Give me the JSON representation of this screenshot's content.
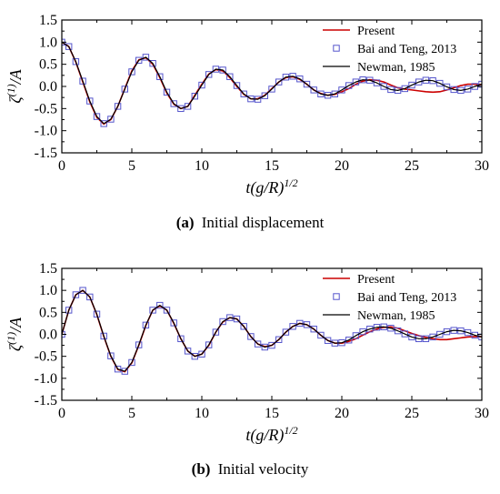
{
  "figure": {
    "captions": [
      {
        "label": "(a)",
        "text": "Initial displacement"
      },
      {
        "label": "(b)",
        "text": "Initial velocity"
      }
    ]
  },
  "chart_data": [
    {
      "type": "line",
      "xlabel": "t(g/R)^{1/2}",
      "ylabel": "ζ^{(1)}/A",
      "xlim": [
        0,
        30
      ],
      "ylim": [
        -1.5,
        1.5
      ],
      "xticks": [
        0,
        5,
        10,
        15,
        20,
        25,
        30
      ],
      "yticks": [
        -1.5,
        -1.0,
        -0.5,
        0.0,
        0.5,
        1.0,
        1.5
      ],
      "legend_position": "top-right",
      "series": [
        {
          "name": "Present",
          "style": "line",
          "color": "#cc0000",
          "x": [
            0,
            0.5,
            1,
            1.5,
            2,
            2.5,
            3,
            3.5,
            4,
            4.5,
            5,
            5.5,
            6,
            6.5,
            7,
            7.5,
            8,
            8.5,
            9,
            9.5,
            10,
            10.5,
            11,
            11.5,
            12,
            12.5,
            13,
            13.5,
            14,
            14.5,
            15,
            15.5,
            16,
            16.5,
            17,
            17.5,
            18,
            18.5,
            19,
            19.5,
            20,
            20.5,
            21,
            21.5,
            22,
            22.5,
            23,
            23.5,
            24,
            24.5,
            25,
            25.5,
            26,
            26.5,
            27,
            27.5,
            28,
            28.5,
            29,
            29.5,
            30
          ],
          "y": [
            1.0,
            0.9,
            0.55,
            0.1,
            -0.35,
            -0.7,
            -0.85,
            -0.75,
            -0.45,
            -0.05,
            0.35,
            0.6,
            0.65,
            0.5,
            0.2,
            -0.15,
            -0.4,
            -0.5,
            -0.45,
            -0.2,
            0.05,
            0.28,
            0.38,
            0.35,
            0.2,
            0.0,
            -0.18,
            -0.28,
            -0.28,
            -0.2,
            -0.05,
            0.1,
            0.2,
            0.22,
            0.16,
            0.05,
            -0.08,
            -0.16,
            -0.2,
            -0.18,
            -0.12,
            -0.05,
            0.05,
            0.12,
            0.15,
            0.14,
            0.1,
            0.03,
            -0.03,
            -0.06,
            -0.08,
            -0.1,
            -0.12,
            -0.13,
            -0.12,
            -0.08,
            -0.03,
            0.02,
            0.05,
            0.05,
            0.04
          ]
        },
        {
          "name": "Bai and Teng, 2013",
          "style": "marker",
          "color": "#5555cc",
          "x": [
            0,
            0.5,
            1,
            1.5,
            2,
            2.5,
            3,
            3.5,
            4,
            4.5,
            5,
            5.5,
            6,
            6.5,
            7,
            7.5,
            8,
            8.5,
            9,
            9.5,
            10,
            10.5,
            11,
            11.5,
            12,
            12.5,
            13,
            13.5,
            14,
            14.5,
            15,
            15.5,
            16,
            16.5,
            17,
            17.5,
            18,
            18.5,
            19,
            19.5,
            20,
            20.5,
            21,
            21.5,
            22,
            22.5,
            23,
            23.5,
            24,
            24.5,
            25,
            25.5,
            26,
            26.5,
            27,
            27.5,
            28,
            28.5,
            29,
            29.5,
            30
          ],
          "y": [
            1.0,
            0.9,
            0.56,
            0.12,
            -0.33,
            -0.68,
            -0.84,
            -0.74,
            -0.45,
            -0.06,
            0.33,
            0.59,
            0.66,
            0.52,
            0.22,
            -0.13,
            -0.39,
            -0.5,
            -0.45,
            -0.22,
            0.03,
            0.27,
            0.39,
            0.37,
            0.22,
            0.02,
            -0.17,
            -0.28,
            -0.29,
            -0.21,
            -0.06,
            0.1,
            0.21,
            0.23,
            0.17,
            0.05,
            -0.08,
            -0.17,
            -0.2,
            -0.17,
            -0.08,
            0.02,
            0.1,
            0.15,
            0.14,
            0.08,
            0.0,
            -0.07,
            -0.09,
            -0.05,
            0.03,
            0.1,
            0.14,
            0.13,
            0.07,
            -0.01,
            -0.07,
            -0.09,
            -0.06,
            0.0,
            0.05
          ]
        },
        {
          "name": "Newman, 1985",
          "style": "line",
          "color": "#000000",
          "x": [
            0,
            0.5,
            1,
            1.5,
            2,
            2.5,
            3,
            3.5,
            4,
            4.5,
            5,
            5.5,
            6,
            6.5,
            7,
            7.5,
            8,
            8.5,
            9,
            9.5,
            10,
            10.5,
            11,
            11.5,
            12,
            12.5,
            13,
            13.5,
            14,
            14.5,
            15,
            15.5,
            16,
            16.5,
            17,
            17.5,
            18,
            18.5,
            19,
            19.5,
            20,
            20.5,
            21,
            21.5,
            22,
            22.5,
            23,
            23.5,
            24,
            24.5,
            25,
            25.5,
            26,
            26.5,
            27,
            27.5,
            28,
            28.5,
            29,
            29.5,
            30
          ],
          "y": [
            1.0,
            0.9,
            0.56,
            0.12,
            -0.33,
            -0.68,
            -0.84,
            -0.74,
            -0.45,
            -0.06,
            0.33,
            0.59,
            0.66,
            0.52,
            0.22,
            -0.13,
            -0.39,
            -0.5,
            -0.45,
            -0.22,
            0.03,
            0.27,
            0.39,
            0.37,
            0.22,
            0.02,
            -0.17,
            -0.28,
            -0.29,
            -0.21,
            -0.06,
            0.1,
            0.21,
            0.23,
            0.17,
            0.05,
            -0.08,
            -0.17,
            -0.2,
            -0.17,
            -0.08,
            0.02,
            0.1,
            0.15,
            0.14,
            0.08,
            0.0,
            -0.07,
            -0.09,
            -0.05,
            0.03,
            0.1,
            0.14,
            0.13,
            0.07,
            -0.01,
            -0.07,
            -0.09,
            -0.06,
            0.0,
            0.05
          ]
        }
      ]
    },
    {
      "type": "line",
      "xlabel": "t(g/R)^{1/2}",
      "ylabel": "ζ^{(1)}/A",
      "xlim": [
        0,
        30
      ],
      "ylim": [
        -1.5,
        1.5
      ],
      "xticks": [
        0,
        5,
        10,
        15,
        20,
        25,
        30
      ],
      "yticks": [
        -1.5,
        -1.0,
        -0.5,
        0.0,
        0.5,
        1.0,
        1.5
      ],
      "legend_position": "top-right",
      "series": [
        {
          "name": "Present",
          "style": "line",
          "color": "#cc0000",
          "x": [
            0,
            0.5,
            1,
            1.5,
            2,
            2.5,
            3,
            3.5,
            4,
            4.5,
            5,
            5.5,
            6,
            6.5,
            7,
            7.5,
            8,
            8.5,
            9,
            9.5,
            10,
            10.5,
            11,
            11.5,
            12,
            12.5,
            13,
            13.5,
            14,
            14.5,
            15,
            15.5,
            16,
            16.5,
            17,
            17.5,
            18,
            18.5,
            19,
            19.5,
            20,
            20.5,
            21,
            21.5,
            22,
            22.5,
            23,
            23.5,
            24,
            24.5,
            25,
            25.5,
            26,
            26.5,
            27,
            27.5,
            28,
            28.5,
            29,
            29.5,
            30
          ],
          "y": [
            0.0,
            0.55,
            0.9,
            1.0,
            0.85,
            0.45,
            -0.05,
            -0.5,
            -0.8,
            -0.85,
            -0.65,
            -0.25,
            0.2,
            0.55,
            0.65,
            0.55,
            0.25,
            -0.1,
            -0.38,
            -0.5,
            -0.45,
            -0.25,
            0.05,
            0.28,
            0.38,
            0.35,
            0.18,
            -0.05,
            -0.22,
            -0.28,
            -0.25,
            -0.12,
            0.05,
            0.18,
            0.25,
            0.22,
            0.12,
            -0.02,
            -0.14,
            -0.2,
            -0.2,
            -0.16,
            -0.1,
            -0.02,
            0.06,
            0.12,
            0.16,
            0.17,
            0.14,
            0.08,
            0.02,
            -0.03,
            -0.07,
            -0.1,
            -0.12,
            -0.12,
            -0.1,
            -0.08,
            -0.06,
            -0.05,
            -0.05
          ]
        },
        {
          "name": "Bai and Teng, 2013",
          "style": "marker",
          "color": "#5555cc",
          "x": [
            0,
            0.5,
            1,
            1.5,
            2,
            2.5,
            3,
            3.5,
            4,
            4.5,
            5,
            5.5,
            6,
            6.5,
            7,
            7.5,
            8,
            8.5,
            9,
            9.5,
            10,
            10.5,
            11,
            11.5,
            12,
            12.5,
            13,
            13.5,
            14,
            14.5,
            15,
            15.5,
            16,
            16.5,
            17,
            17.5,
            18,
            18.5,
            19,
            19.5,
            20,
            20.5,
            21,
            21.5,
            22,
            22.5,
            23,
            23.5,
            24,
            24.5,
            25,
            25.5,
            26,
            26.5,
            27,
            27.5,
            28,
            28.5,
            29,
            29.5,
            30
          ],
          "y": [
            0.0,
            0.55,
            0.9,
            1.0,
            0.85,
            0.46,
            -0.04,
            -0.49,
            -0.79,
            -0.84,
            -0.64,
            -0.24,
            0.21,
            0.55,
            0.66,
            0.55,
            0.26,
            -0.1,
            -0.38,
            -0.5,
            -0.45,
            -0.24,
            0.05,
            0.29,
            0.38,
            0.35,
            0.18,
            -0.05,
            -0.22,
            -0.29,
            -0.25,
            -0.12,
            0.05,
            0.18,
            0.25,
            0.22,
            0.12,
            -0.02,
            -0.14,
            -0.2,
            -0.19,
            -0.13,
            -0.03,
            0.06,
            0.12,
            0.16,
            0.17,
            0.14,
            0.08,
            0.01,
            -0.06,
            -0.1,
            -0.1,
            -0.06,
            0.0,
            0.06,
            0.09,
            0.08,
            0.04,
            -0.02,
            -0.06
          ]
        },
        {
          "name": "Newman, 1985",
          "style": "line",
          "color": "#000000",
          "x": [
            0,
            0.5,
            1,
            1.5,
            2,
            2.5,
            3,
            3.5,
            4,
            4.5,
            5,
            5.5,
            6,
            6.5,
            7,
            7.5,
            8,
            8.5,
            9,
            9.5,
            10,
            10.5,
            11,
            11.5,
            12,
            12.5,
            13,
            13.5,
            14,
            14.5,
            15,
            15.5,
            16,
            16.5,
            17,
            17.5,
            18,
            18.5,
            19,
            19.5,
            20,
            20.5,
            21,
            21.5,
            22,
            22.5,
            23,
            23.5,
            24,
            24.5,
            25,
            25.5,
            26,
            26.5,
            27,
            27.5,
            28,
            28.5,
            29,
            29.5,
            30
          ],
          "y": [
            0.0,
            0.55,
            0.9,
            1.0,
            0.85,
            0.46,
            -0.04,
            -0.49,
            -0.79,
            -0.84,
            -0.64,
            -0.24,
            0.21,
            0.55,
            0.66,
            0.55,
            0.26,
            -0.1,
            -0.38,
            -0.5,
            -0.45,
            -0.24,
            0.05,
            0.29,
            0.38,
            0.35,
            0.18,
            -0.05,
            -0.22,
            -0.29,
            -0.25,
            -0.12,
            0.05,
            0.18,
            0.25,
            0.22,
            0.12,
            -0.02,
            -0.14,
            -0.2,
            -0.19,
            -0.13,
            -0.03,
            0.06,
            0.12,
            0.16,
            0.17,
            0.14,
            0.08,
            0.01,
            -0.06,
            -0.1,
            -0.1,
            -0.06,
            0.0,
            0.06,
            0.09,
            0.08,
            0.04,
            -0.02,
            -0.06
          ]
        }
      ]
    }
  ]
}
